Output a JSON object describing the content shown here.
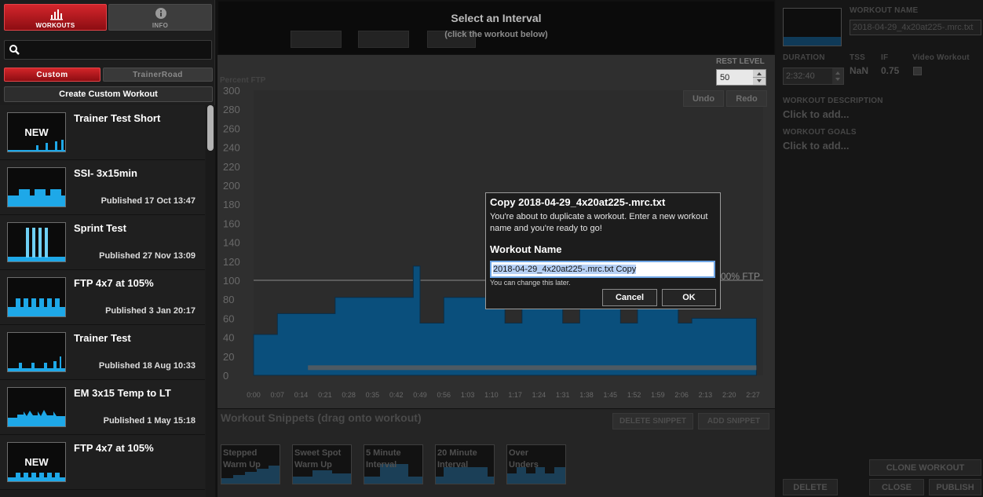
{
  "left": {
    "tabs": {
      "workouts": "WORKOUTS",
      "info": "INFO"
    },
    "search": {
      "placeholder": ""
    },
    "segments": {
      "custom": "Custom",
      "trainerroad": "TrainerRoad"
    },
    "create_label": "Create Custom Workout",
    "items": [
      {
        "title": "Trainer Test Short",
        "published": "",
        "new": true
      },
      {
        "title": "SSI- 3x15min",
        "published": "Published 17 Oct 13:47",
        "new": false
      },
      {
        "title": "Sprint Test",
        "published": "Published 27 Nov 13:09",
        "new": false
      },
      {
        "title": "FTP 4x7 at 105%",
        "published": "Published 3 Jan 20:17",
        "new": false
      },
      {
        "title": "Trainer Test",
        "published": "Published 18 Aug 10:33",
        "new": false
      },
      {
        "title": "EM 3x15 Temp to LT",
        "published": "Published 1 May 15:18",
        "new": false
      },
      {
        "title": "FTP 4x7 at 105%",
        "published": "",
        "new": true
      }
    ],
    "new_badge": "NEW"
  },
  "center": {
    "title": "Select an Interval",
    "subtitle": "(click the workout below)",
    "rest_level_label": "REST LEVEL",
    "rest_level_value": "50",
    "undo": "Undo",
    "redo": "Redo",
    "snippets_title": "Workout Snippets (drag onto workout)",
    "delete_snippet": "DELETE SNIPPET",
    "add_snippet": "ADD SNIPPET",
    "snippets": [
      {
        "line1": "Stepped",
        "line2": "Warm Up"
      },
      {
        "line1": "Sweet Spot",
        "line2": "Warm Up"
      },
      {
        "line1": "5 Minute",
        "line2": "Interval"
      },
      {
        "line1": "20 Minute",
        "line2": "Interval"
      },
      {
        "line1": "Over",
        "line2": "Unders"
      }
    ]
  },
  "chart_data": {
    "type": "area",
    "ylabel": "Percent FTP",
    "ylim": [
      0,
      300
    ],
    "y_ticks": [
      300,
      280,
      260,
      240,
      220,
      200,
      180,
      160,
      140,
      120,
      100,
      80,
      60,
      40,
      20,
      0
    ],
    "x_ticks": [
      "0:00",
      "0:07",
      "0:14",
      "0:21",
      "0:28",
      "0:35",
      "0:42",
      "0:49",
      "0:56",
      "1:03",
      "1:10",
      "1:17",
      "1:24",
      "1:31",
      "1:38",
      "1:45",
      "1:52",
      "1:59",
      "2:06",
      "2:13",
      "2:20",
      "2:27"
    ],
    "ftp_line_label": "100% FTP",
    "ftp_line": 100,
    "x_minutes": [
      0,
      7,
      7,
      16,
      16,
      24,
      24,
      36,
      36,
      44,
      44,
      47,
      47,
      49,
      49,
      56,
      56,
      62,
      62,
      74,
      74,
      79,
      79,
      91,
      91,
      96,
      96,
      108,
      108,
      113,
      113,
      125,
      125,
      129,
      129,
      138,
      138,
      148
    ],
    "y_percent": [
      43,
      43,
      65,
      65,
      65,
      65,
      82,
      82,
      82,
      82,
      82,
      82,
      115,
      115,
      55,
      55,
      82,
      82,
      82,
      82,
      55,
      55,
      82,
      82,
      55,
      55,
      82,
      82,
      55,
      55,
      82,
      82,
      55,
      55,
      60,
      60,
      60,
      60
    ],
    "rest_band_y": 8
  },
  "right": {
    "workout_name_label": "WORKOUT NAME",
    "workout_name_value": "2018-04-29_4x20at225-.mrc.txt",
    "duration_label": "DURATION",
    "duration_value": "2:32:40",
    "tss_label": "TSS",
    "tss_value": "NaN",
    "if_label": "IF",
    "if_value": "0.75",
    "video_label": "Video Workout",
    "desc_label": "WORKOUT DESCRIPTION",
    "desc_value": "Click to add...",
    "goals_label": "WORKOUT GOALS",
    "goals_value": "Click to add...",
    "clone": "CLONE WORKOUT",
    "delete": "DELETE",
    "close": "CLOSE",
    "publish": "PUBLISH"
  },
  "dialog": {
    "title": "Copy 2018-04-29_4x20at225-.mrc.txt",
    "message": "You're about to duplicate a workout. Enter a new workout name and you're ready to go!",
    "name_label": "Workout Name",
    "name_value": "2018-04-29_4x20at225-.mrc.txt Copy",
    "hint": "You can change this later.",
    "cancel": "Cancel",
    "ok": "OK"
  },
  "colors": {
    "brand_red": "#c81e24",
    "chart_blue": "#0a4f7c",
    "thumb_blue": "#1ea8e8"
  }
}
